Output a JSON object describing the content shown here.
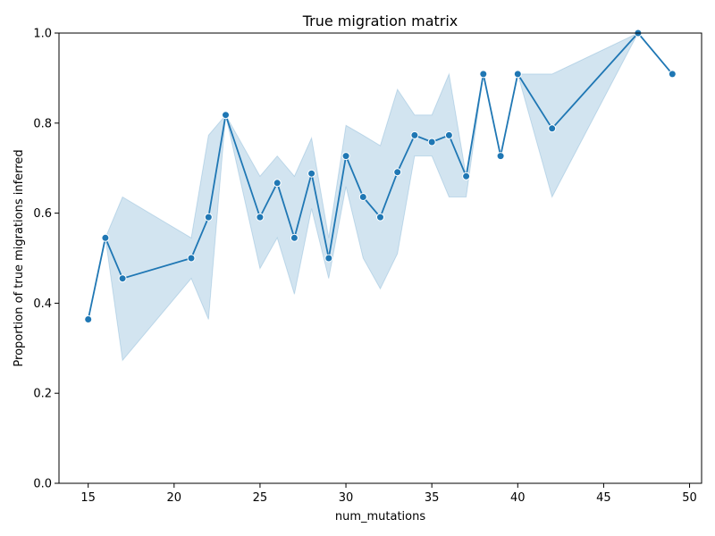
{
  "chart_data": {
    "type": "line",
    "title": "True migration matrix",
    "xlabel": "num_mutations",
    "ylabel": "Proportion of true migrations inferred",
    "xlim": [
      13.3,
      50.7
    ],
    "ylim": [
      0.0,
      1.0
    ],
    "xticks": [
      "15",
      "20",
      "25",
      "30",
      "35",
      "40",
      "45",
      "50"
    ],
    "yticks": [
      "0.0",
      "0.2",
      "0.4",
      "0.6",
      "0.8",
      "1.0"
    ],
    "grid": false,
    "legend": "none",
    "colors": {
      "line": "#1f77b4",
      "band": "#1f77b4"
    },
    "series": [
      {
        "x": [
          15,
          16,
          17,
          21,
          22,
          23,
          25,
          26,
          27,
          28,
          29,
          30,
          31,
          32,
          33,
          34,
          35,
          36,
          37,
          38,
          39,
          40,
          42,
          47,
          49
        ],
        "y": [
          0.364,
          0.545,
          0.455,
          0.5,
          0.591,
          0.818,
          0.591,
          0.667,
          0.545,
          0.688,
          0.5,
          0.727,
          0.636,
          0.591,
          0.691,
          0.773,
          0.758,
          0.773,
          0.682,
          0.909,
          0.727,
          0.909,
          0.788,
          1.0,
          0.909
        ],
        "lower": [
          0.364,
          0.545,
          0.273,
          0.455,
          0.364,
          0.818,
          0.477,
          0.545,
          0.42,
          0.61,
          0.455,
          0.659,
          0.5,
          0.432,
          0.51,
          0.727,
          0.727,
          0.636,
          0.636,
          0.909,
          0.727,
          0.909,
          0.636,
          1.0,
          0.909
        ],
        "upper": [
          0.364,
          0.545,
          0.636,
          0.545,
          0.773,
          0.818,
          0.682,
          0.727,
          0.682,
          0.767,
          0.545,
          0.795,
          0.773,
          0.75,
          0.875,
          0.818,
          0.818,
          0.909,
          0.682,
          0.909,
          0.727,
          0.909,
          0.909,
          1.0,
          0.909
        ]
      }
    ]
  }
}
